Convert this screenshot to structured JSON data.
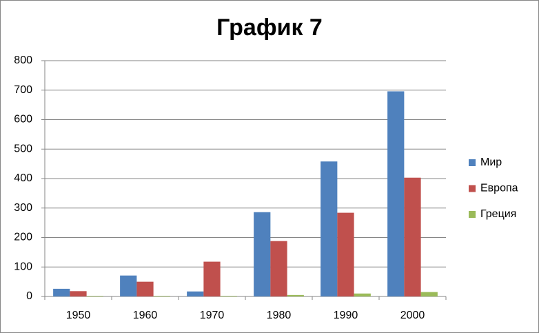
{
  "chart_data": {
    "type": "bar",
    "title": "График 7",
    "categories": [
      "1950",
      "1960",
      "1970",
      "1980",
      "1990",
      "2000"
    ],
    "series": [
      {
        "name": "Мир",
        "color": "#4f81bd",
        "values": [
          26,
          71,
          17,
          286,
          458,
          696
        ]
      },
      {
        "name": "Европа",
        "color": "#c0504d",
        "values": [
          18,
          50,
          118,
          188,
          284,
          403
        ]
      },
      {
        "name": "Греция",
        "color": "#9bbb59",
        "values": [
          2,
          2,
          2,
          5,
          10,
          15
        ]
      }
    ],
    "ylim": [
      0,
      800
    ],
    "yticks": [
      0,
      100,
      200,
      300,
      400,
      500,
      600,
      700,
      800
    ],
    "grid": true,
    "legend": "right"
  }
}
